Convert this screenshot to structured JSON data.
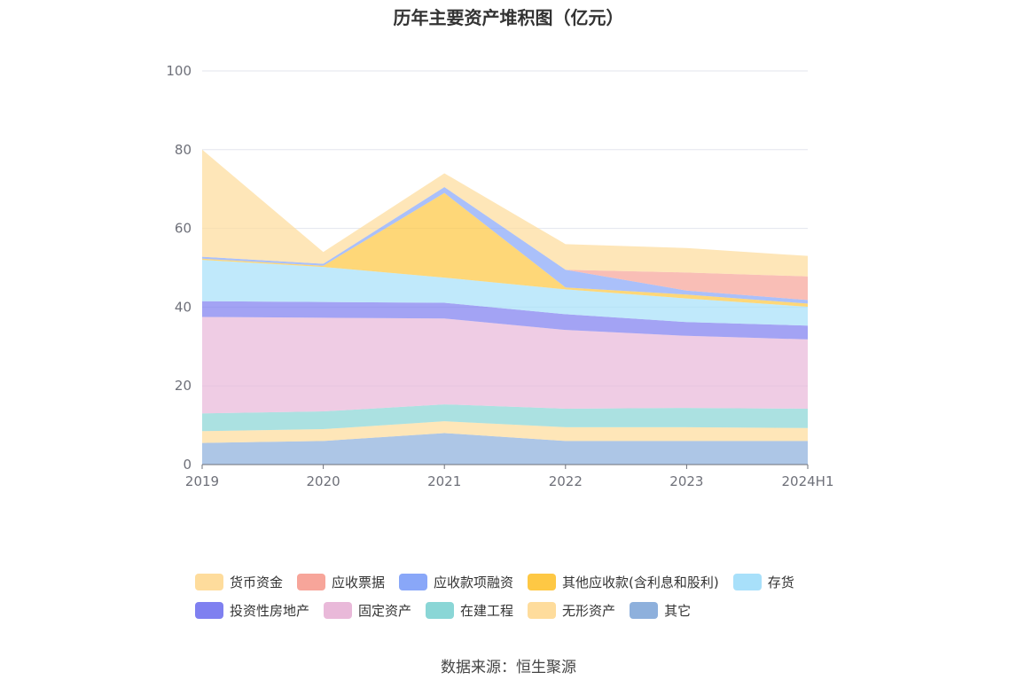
{
  "title": "历年主要资产堆积图（亿元）",
  "source": "数据来源：恒生聚源",
  "chart_data": {
    "type": "area",
    "stacked": true,
    "title": "历年主要资产堆积图（亿元）",
    "x": [
      "2019",
      "2020",
      "2021",
      "2022",
      "2023",
      "2024H1"
    ],
    "ylim": [
      0,
      100
    ],
    "yticks": [
      0,
      20,
      40,
      60,
      80,
      100
    ],
    "grid": true,
    "legend_position": "bottom",
    "series": [
      {
        "name": "其它",
        "color": "#8eb0dc",
        "values": [
          5.5,
          6.0,
          8.0,
          6.0,
          6.0,
          6.0
        ]
      },
      {
        "name": "无形资产",
        "color": "#fedc9c",
        "values": [
          3.0,
          3.0,
          3.0,
          3.5,
          3.5,
          3.3
        ]
      },
      {
        "name": "在建工程",
        "color": "#8ad6d6",
        "values": [
          4.5,
          4.5,
          4.3,
          4.7,
          4.9,
          4.9
        ]
      },
      {
        "name": "固定资产",
        "color": "#e9b9d9",
        "values": [
          24.5,
          23.8,
          21.8,
          20.0,
          18.3,
          17.6
        ]
      },
      {
        "name": "投资性房地产",
        "color": "#7f80f0",
        "values": [
          4.0,
          4.0,
          4.0,
          4.0,
          3.5,
          3.5
        ]
      },
      {
        "name": "存货",
        "color": "#a8e0fa",
        "values": [
          10.5,
          8.9,
          6.4,
          6.3,
          6.0,
          4.8
        ]
      },
      {
        "name": "其他应收款(含利息和股利)",
        "color": "#fec844",
        "values": [
          0.3,
          0.3,
          21.5,
          0.5,
          1.0,
          0.8
        ]
      },
      {
        "name": "应收款项融资",
        "color": "#89a7f8",
        "values": [
          0.5,
          0.5,
          1.5,
          4.5,
          1.0,
          0.9
        ]
      },
      {
        "name": "应收票据",
        "color": "#f7a59a",
        "values": [
          0.0,
          0.0,
          0.0,
          0.0,
          4.6,
          6.0
        ]
      },
      {
        "name": "货币资金",
        "color": "#fedc9c",
        "values": [
          27.2,
          3.0,
          3.5,
          6.5,
          6.2,
          5.2
        ]
      }
    ]
  },
  "legend": [
    {
      "label": "货币资金",
      "color": "#fedc9c"
    },
    {
      "label": "应收票据",
      "color": "#f7a59a"
    },
    {
      "label": "应收款项融资",
      "color": "#89a7f8"
    },
    {
      "label": "其他应收款(含利息和股利)",
      "color": "#fec844"
    },
    {
      "label": "存货",
      "color": "#a8e0fa"
    },
    {
      "label": "投资性房地产",
      "color": "#7f80f0"
    },
    {
      "label": "固定资产",
      "color": "#e9b9d9"
    },
    {
      "label": "在建工程",
      "color": "#8ad6d6"
    },
    {
      "label": "无形资产",
      "color": "#fedc9c"
    },
    {
      "label": "其它",
      "color": "#8eb0dc"
    }
  ]
}
